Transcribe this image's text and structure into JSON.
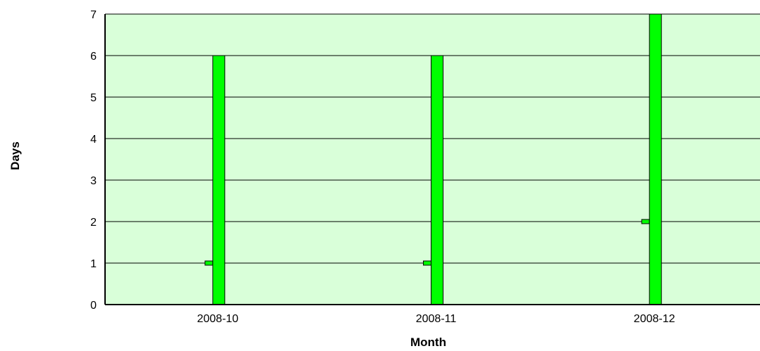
{
  "chart_data": {
    "type": "bar",
    "title": "",
    "xlabel": "Month",
    "ylabel": "Days",
    "categories": [
      "2008-10",
      "2008-11",
      "2008-12"
    ],
    "series": [
      {
        "values": [
          1,
          1,
          2
        ]
      },
      {
        "values": [
          6,
          6,
          7
        ]
      }
    ],
    "ylim": [
      0,
      7
    ],
    "yticks": [
      0,
      1,
      2,
      3,
      4,
      5,
      6,
      7
    ],
    "grid": true,
    "legend": "none",
    "colors": {
      "plot_background": "#d9ffd9",
      "bar_fill": "#00ff00",
      "bar_stroke": "#000000",
      "grid": "#000000"
    }
  }
}
